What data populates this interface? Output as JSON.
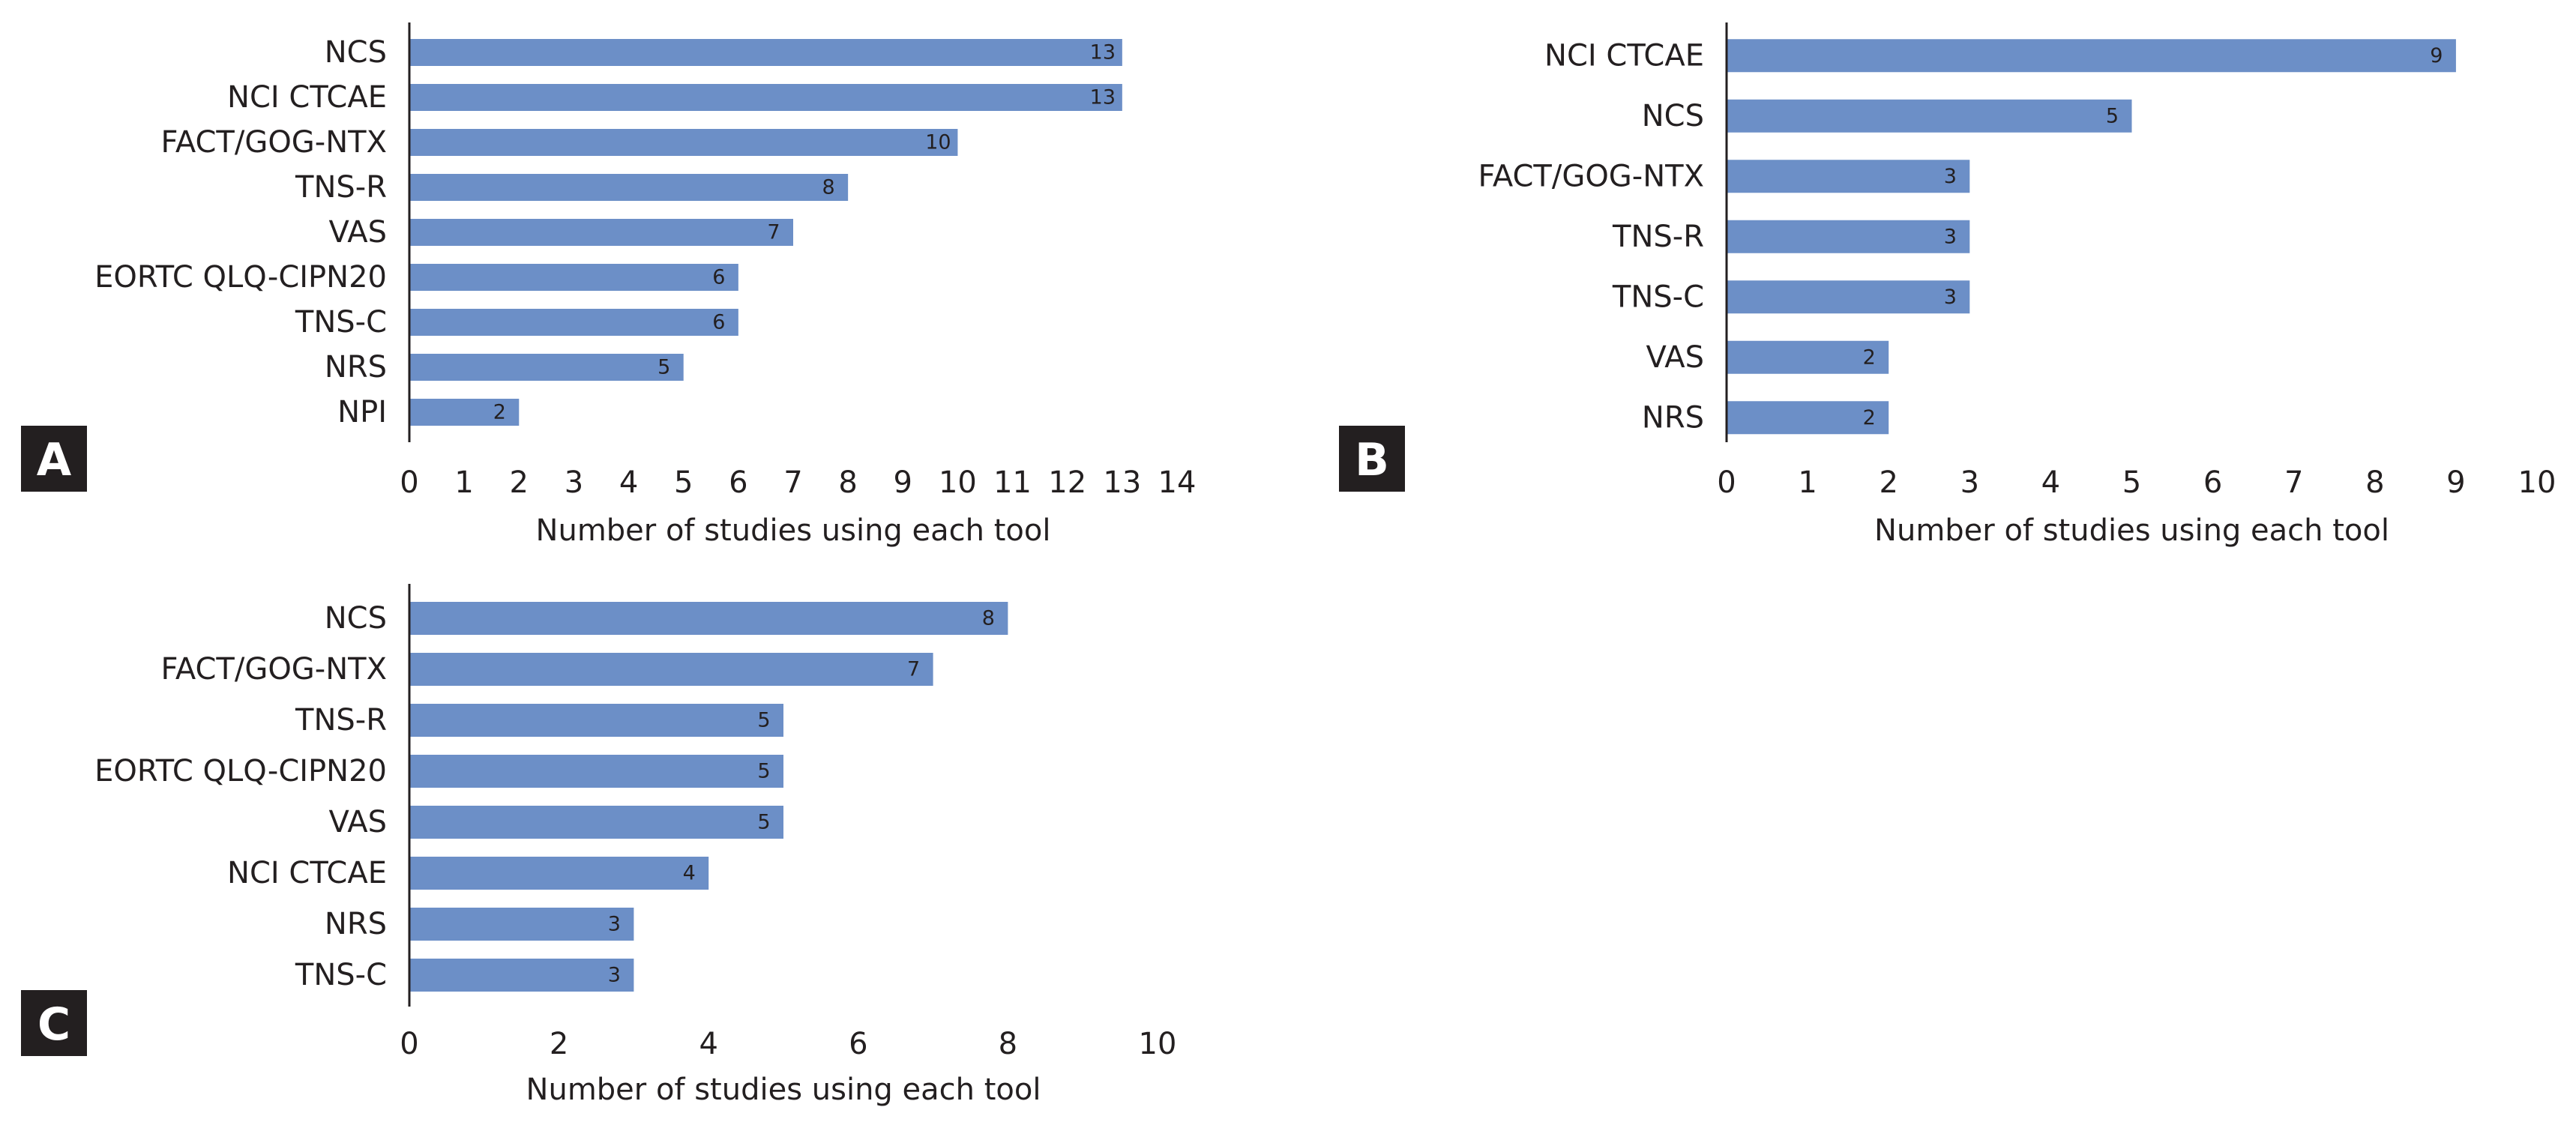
{
  "colors": {
    "bar": "#6c8fc7",
    "text": "#231f20",
    "axis": "#231f20",
    "badge": "#231f20",
    "badge_text": "#ffffff"
  },
  "chart_data": [
    {
      "panel": "A",
      "type": "bar",
      "orientation": "horizontal",
      "categories": [
        "NCS",
        "NCI CTCAE",
        "FACT/GOG-NTX",
        "TNS-R",
        "VAS",
        "EORTC QLQ-CIPN20",
        "TNS-C",
        "NRS",
        "NPI"
      ],
      "values": [
        13,
        13,
        10,
        8,
        7,
        6,
        6,
        5,
        2
      ],
      "xlabel": "Number of studies using each tool",
      "xlim": [
        0,
        14
      ],
      "xticks": [
        0,
        1,
        2,
        3,
        4,
        5,
        6,
        7,
        8,
        9,
        10,
        11,
        12,
        13,
        14
      ],
      "grid": false
    },
    {
      "panel": "B",
      "type": "bar",
      "orientation": "horizontal",
      "categories": [
        "NCI CTCAE",
        "NCS",
        "FACT/GOG-NTX",
        "TNS-R",
        "TNS-C",
        "VAS",
        "NRS"
      ],
      "values": [
        9,
        5,
        3,
        3,
        3,
        2,
        2
      ],
      "xlabel": "Number of studies using each tool",
      "xlim": [
        0,
        10
      ],
      "xticks": [
        0,
        1,
        2,
        3,
        4,
        5,
        6,
        7,
        8,
        9,
        10
      ],
      "grid": false
    },
    {
      "panel": "C",
      "type": "bar",
      "orientation": "horizontal",
      "categories": [
        "NCS",
        "FACT/GOG-NTX",
        "TNS-R",
        "EORTC QLQ-CIPN20",
        "VAS",
        "NCI CTCAE",
        "NRS",
        "TNS-C"
      ],
      "values": [
        8,
        7,
        5,
        5,
        5,
        4,
        3,
        3
      ],
      "xlabel": "Number of studies using each tool",
      "xlim": [
        0,
        10
      ],
      "xticks": [
        0,
        2,
        4,
        6,
        8,
        10
      ],
      "grid": false
    }
  ]
}
